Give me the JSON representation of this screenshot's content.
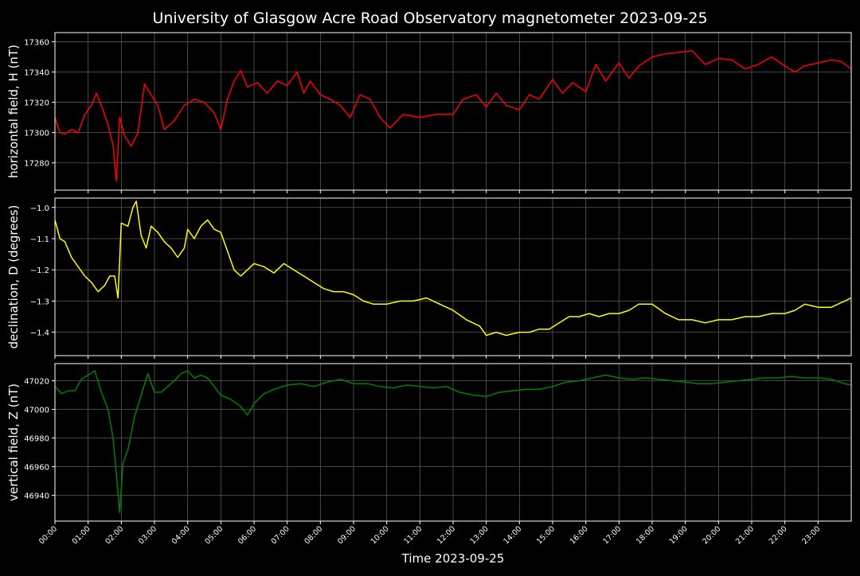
{
  "chart_data": {
    "type": "line",
    "title": "University of Glasgow Acre Road Observatory magnetometer 2023-09-25",
    "xlabel": "Time 2023-09-25",
    "x_tick_labels": [
      "00:00",
      "01:00",
      "02:00",
      "03:00",
      "04:00",
      "05:00",
      "06:00",
      "07:00",
      "08:00",
      "09:00",
      "10:00",
      "11:00",
      "12:00",
      "13:00",
      "14:00",
      "15:00",
      "16:00",
      "17:00",
      "18:00",
      "19:00",
      "20:00",
      "21:00",
      "22:00",
      "23:00"
    ],
    "xlim_hours": [
      0,
      24
    ],
    "grid": true,
    "colors": {
      "background": "#000000",
      "text": "#ffffff",
      "grid": "#5a5a5a"
    },
    "panels": [
      {
        "ylabel": "horizontal field, H (nT)",
        "color": "#ff0000",
        "ylim": [
          17262,
          17366
        ],
        "yticks": [
          17280,
          17300,
          17320,
          17340,
          17360
        ],
        "x_hours": [
          0,
          0.15,
          0.3,
          0.5,
          0.7,
          0.9,
          1.1,
          1.25,
          1.45,
          1.6,
          1.75,
          1.85,
          1.95,
          2.1,
          2.3,
          2.5,
          2.7,
          2.9,
          3.1,
          3.3,
          3.6,
          3.9,
          4.2,
          4.5,
          4.8,
          5.0,
          5.2,
          5.4,
          5.6,
          5.8,
          6.1,
          6.4,
          6.7,
          7.0,
          7.3,
          7.5,
          7.7,
          8.0,
          8.3,
          8.6,
          8.9,
          9.2,
          9.5,
          9.8,
          10.1,
          10.5,
          11.0,
          11.5,
          12.0,
          12.3,
          12.7,
          13.0,
          13.3,
          13.6,
          14.0,
          14.3,
          14.6,
          15.0,
          15.3,
          15.6,
          16.0,
          16.3,
          16.6,
          17.0,
          17.3,
          17.6,
          18.0,
          18.4,
          18.8,
          19.2,
          19.6,
          20.0,
          20.4,
          20.8,
          21.2,
          21.6,
          22.0,
          22.3,
          22.6,
          23.0,
          23.4,
          23.7,
          24.0
        ],
        "values": [
          17310,
          17300,
          17299,
          17302,
          17300,
          17312,
          17318,
          17326,
          17315,
          17305,
          17292,
          17268,
          17310,
          17298,
          17291,
          17300,
          17332,
          17325,
          17318,
          17302,
          17308,
          17318,
          17322,
          17320,
          17313,
          17302,
          17322,
          17334,
          17341,
          17330,
          17333,
          17326,
          17334,
          17331,
          17340,
          17326,
          17334,
          17325,
          17322,
          17318,
          17310,
          17325,
          17322,
          17310,
          17303,
          17312,
          17310,
          17312,
          17312,
          17322,
          17325,
          17317,
          17326,
          17318,
          17315,
          17325,
          17322,
          17335,
          17326,
          17333,
          17327,
          17345,
          17334,
          17346,
          17336,
          17344,
          17350,
          17352,
          17353,
          17354,
          17345,
          17349,
          17348,
          17342,
          17345,
          17350,
          17344,
          17340,
          17344,
          17346,
          17348,
          17347,
          17342
        ]
      },
      {
        "ylabel": "declination, D (degrees)",
        "color": "#ffff00",
        "ylim": [
          -1.475,
          -0.97
        ],
        "yticks": [
          -1.0,
          -1.1,
          -1.2,
          -1.3,
          -1.4
        ],
        "x_hours": [
          0,
          0.15,
          0.3,
          0.5,
          0.7,
          0.9,
          1.1,
          1.3,
          1.5,
          1.65,
          1.8,
          1.9,
          2.0,
          2.2,
          2.35,
          2.45,
          2.6,
          2.75,
          2.9,
          3.1,
          3.3,
          3.5,
          3.7,
          3.9,
          4.0,
          4.2,
          4.4,
          4.6,
          4.8,
          5.0,
          5.2,
          5.4,
          5.6,
          5.8,
          6.0,
          6.3,
          6.6,
          6.9,
          7.2,
          7.5,
          7.8,
          8.1,
          8.4,
          8.7,
          9.0,
          9.3,
          9.6,
          10.0,
          10.4,
          10.8,
          11.2,
          11.6,
          12.0,
          12.4,
          12.8,
          13.0,
          13.3,
          13.6,
          14.0,
          14.3,
          14.6,
          14.9,
          15.2,
          15.5,
          15.8,
          16.1,
          16.4,
          16.7,
          17.0,
          17.3,
          17.6,
          18.0,
          18.4,
          18.8,
          19.2,
          19.6,
          20.0,
          20.4,
          20.8,
          21.2,
          21.6,
          22.0,
          22.3,
          22.6,
          23.0,
          23.4,
          23.8,
          24.0
        ],
        "values": [
          -1.04,
          -1.1,
          -1.11,
          -1.16,
          -1.19,
          -1.22,
          -1.24,
          -1.27,
          -1.25,
          -1.22,
          -1.22,
          -1.29,
          -1.05,
          -1.06,
          -1.0,
          -0.98,
          -1.09,
          -1.13,
          -1.06,
          -1.08,
          -1.11,
          -1.13,
          -1.16,
          -1.13,
          -1.07,
          -1.1,
          -1.06,
          -1.04,
          -1.07,
          -1.08,
          -1.14,
          -1.2,
          -1.22,
          -1.2,
          -1.18,
          -1.19,
          -1.21,
          -1.18,
          -1.2,
          -1.22,
          -1.24,
          -1.26,
          -1.27,
          -1.27,
          -1.28,
          -1.3,
          -1.31,
          -1.31,
          -1.3,
          -1.3,
          -1.29,
          -1.31,
          -1.33,
          -1.36,
          -1.38,
          -1.41,
          -1.4,
          -1.41,
          -1.4,
          -1.4,
          -1.39,
          -1.39,
          -1.37,
          -1.35,
          -1.35,
          -1.34,
          -1.35,
          -1.34,
          -1.34,
          -1.33,
          -1.31,
          -1.31,
          -1.34,
          -1.36,
          -1.36,
          -1.37,
          -1.36,
          -1.36,
          -1.35,
          -1.35,
          -1.34,
          -1.34,
          -1.33,
          -1.31,
          -1.32,
          -1.32,
          -1.3,
          -1.29
        ]
      },
      {
        "ylabel": "vertical field, Z (nT)",
        "color": "#008000",
        "ylim": [
          46922,
          47032
        ],
        "yticks": [
          46940,
          46960,
          46980,
          47000,
          47020
        ],
        "x_hours": [
          0,
          0.2,
          0.4,
          0.6,
          0.8,
          1.0,
          1.2,
          1.4,
          1.6,
          1.75,
          1.85,
          1.95,
          2.05,
          2.2,
          2.4,
          2.6,
          2.8,
          3.0,
          3.2,
          3.4,
          3.6,
          3.8,
          4.0,
          4.2,
          4.4,
          4.6,
          4.8,
          5.0,
          5.3,
          5.6,
          5.8,
          6.0,
          6.3,
          6.6,
          7.0,
          7.4,
          7.8,
          8.2,
          8.6,
          9.0,
          9.4,
          9.8,
          10.2,
          10.6,
          11.0,
          11.4,
          11.8,
          12.2,
          12.6,
          13.0,
          13.4,
          13.8,
          14.2,
          14.6,
          15.0,
          15.4,
          15.8,
          16.2,
          16.6,
          17.0,
          17.4,
          17.8,
          18.2,
          18.6,
          19.0,
          19.4,
          19.8,
          20.2,
          20.6,
          21.0,
          21.4,
          21.8,
          22.2,
          22.6,
          23.0,
          23.4,
          23.8,
          24.0
        ],
        "values": [
          47016,
          47011,
          47013,
          47013,
          47021,
          47024,
          47027,
          47012,
          47000,
          46980,
          46955,
          46928,
          46962,
          46972,
          46995,
          47010,
          47025,
          47012,
          47012,
          47016,
          47020,
          47025,
          47027,
          47022,
          47024,
          47022,
          47016,
          47010,
          47007,
          47002,
          46996,
          47004,
          47011,
          47014,
          47017,
          47018,
          47016,
          47019,
          47021,
          47018,
          47018,
          47016,
          47015,
          47017,
          47016,
          47015,
          47016,
          47012,
          47010,
          47009,
          47012,
          47013,
          47014,
          47014,
          47016,
          47019,
          47020,
          47022,
          47024,
          47022,
          47021,
          47022,
          47021,
          47020,
          47019,
          47018,
          47018,
          47019,
          47020,
          47021,
          47022,
          47022,
          47023,
          47022,
          47022,
          47021,
          47018,
          47017
        ]
      }
    ]
  }
}
